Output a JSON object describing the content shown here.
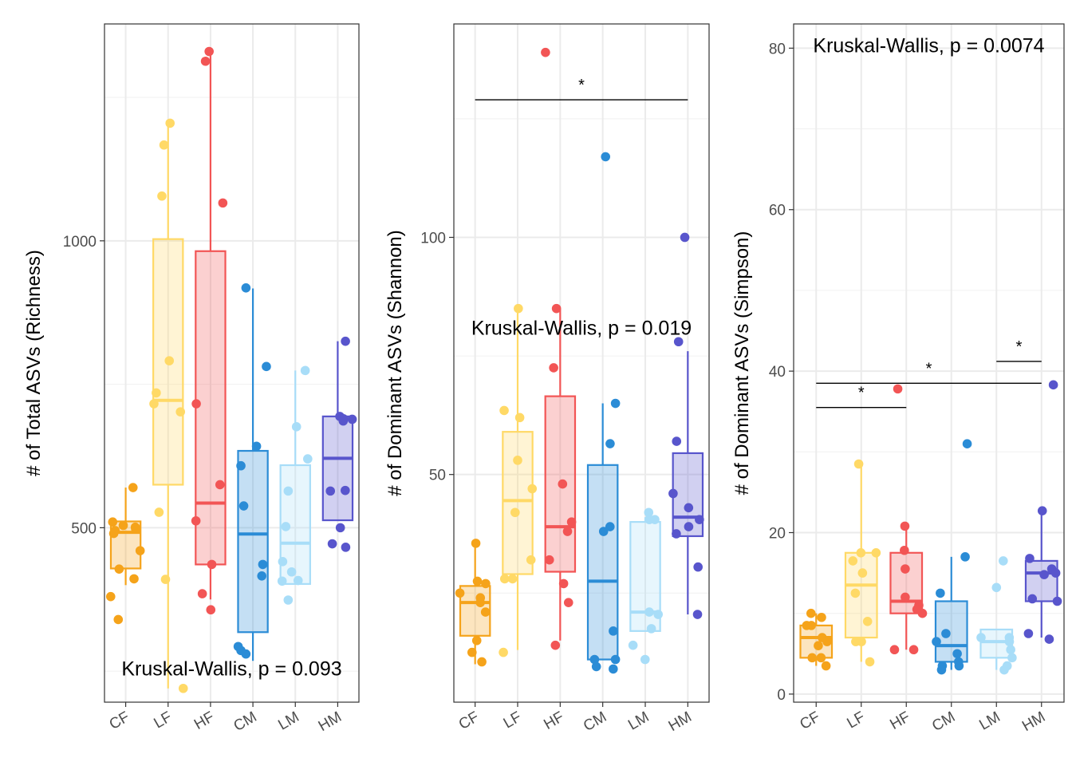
{
  "groups": [
    "CF",
    "LF",
    "HF",
    "CM",
    "LM",
    "HM"
  ],
  "colors": {
    "CF": "#F5A31A",
    "LF": "#FFD966",
    "HF": "#F25555",
    "CM": "#2B8CD6",
    "LM": "#A8DDF8",
    "HM": "#5855CC"
  },
  "chart_data": [
    {
      "type": "boxplot",
      "ylabel": "# of Total ASVs (Richness)",
      "yticks": [
        500,
        1000
      ],
      "ylim": [
        196,
        1378
      ],
      "annotation": "Kruskal-Wallis, p = 0.093",
      "annotation_pos": [
        350,
        255
      ],
      "boxes": {
        "CF": {
          "q1": 429,
          "median": 492,
          "q3": 511,
          "lower": 400,
          "upper": 570
        },
        "LF": {
          "q1": 575,
          "median": 722,
          "q3": 1003,
          "lower": 220,
          "upper": 1205
        },
        "HF": {
          "q1": 436,
          "median": 543,
          "q3": 982,
          "lower": 375,
          "upper": 1325
        },
        "CM": {
          "q1": 318,
          "median": 489,
          "q3": 634,
          "lower": 268,
          "upper": 917
        },
        "LM": {
          "q1": 402,
          "median": 473,
          "q3": 609,
          "lower": 402,
          "upper": 774
        },
        "HM": {
          "q1": 513,
          "median": 621,
          "q3": 694,
          "lower": 513,
          "upper": 825
        }
      },
      "points": {
        "CF": [
          570,
          510,
          504,
          498,
          495,
          501,
          490,
          460,
          428,
          411,
          380,
          340
        ],
        "LF": [
          1205,
          1167,
          1078,
          791,
          735,
          716,
          702,
          527,
          410,
          220
        ],
        "HF": [
          1330,
          1313,
          1066,
          716,
          575,
          512,
          436,
          385,
          357
        ],
        "CM": [
          918,
          781,
          642,
          608,
          538,
          436,
          416,
          293,
          286,
          280
        ],
        "LM": [
          774,
          676,
          620,
          564,
          502,
          441,
          423,
          407,
          408,
          374
        ],
        "HM": [
          825,
          694,
          690,
          689,
          686,
          564,
          565,
          500,
          472,
          466
        ]
      },
      "brackets": []
    },
    {
      "type": "boxplot",
      "ylabel": "# of Dominant ASVs (Shannon)",
      "yticks": [
        50,
        100
      ],
      "ylim": [
        2,
        145
      ],
      "annotation": "Kruskal-Wallis, p = 0.019",
      "annotation_pos": [
        350,
        81
      ],
      "boxes": {
        "CF": {
          "q1": 16,
          "median": 23,
          "q3": 26.5,
          "lower": 10,
          "upper": 35
        },
        "LF": {
          "q1": 29,
          "median": 44.5,
          "q3": 59,
          "lower": 13,
          "upper": 85
        },
        "HF": {
          "q1": 29.5,
          "median": 39,
          "q3": 66.5,
          "lower": 15,
          "upper": 85
        },
        "CM": {
          "q1": 11,
          "median": 27.5,
          "q3": 52,
          "lower": 11,
          "upper": 65
        },
        "LM": {
          "q1": 17,
          "median": 21,
          "q3": 40,
          "lower": 17,
          "upper": 41
        },
        "HM": {
          "q1": 37,
          "median": 41,
          "q3": 54.5,
          "lower": 20.5,
          "upper": 76
        }
      },
      "points": {
        "CF": [
          35.5,
          27.5,
          27,
          25,
          24,
          23,
          21,
          15,
          12.5,
          10.5
        ],
        "LF": [
          85,
          62,
          63.5,
          53,
          47,
          42,
          32,
          28,
          28,
          12.5
        ],
        "HF": [
          139,
          85,
          72.5,
          48,
          40,
          38,
          32,
          27,
          23,
          14
        ],
        "CM": [
          117,
          65,
          56.5,
          39,
          38,
          17,
          11,
          11,
          9.5,
          9
        ],
        "LM": [
          42,
          40.5,
          40.5,
          21,
          20.5,
          17.5,
          14,
          11
        ],
        "HM": [
          100,
          78,
          57,
          46,
          43,
          40.5,
          39,
          37.5,
          30.5,
          20.5
        ]
      },
      "brackets": [
        {
          "from": "CF",
          "to": "HM",
          "y": 129,
          "label": "*"
        }
      ]
    },
    {
      "type": "boxplot",
      "ylabel": "# of Dominant ASVs (Simpson)",
      "yticks": [
        0,
        20,
        40,
        60,
        80
      ],
      "ylim": [
        -1,
        83
      ],
      "annotation": "Kruskal-Wallis, p = 0.0074",
      "annotation_pos": [
        350,
        80.4
      ],
      "boxes": {
        "CF": {
          "q1": 4.5,
          "median": 7,
          "q3": 8.5,
          "lower": 3.5,
          "upper": 10
        },
        "LF": {
          "q1": 7,
          "median": 13.5,
          "q3": 17.5,
          "lower": 4,
          "upper": 28.5
        },
        "HF": {
          "q1": 10,
          "median": 11.5,
          "q3": 17.5,
          "lower": 5.5,
          "upper": 20.5
        },
        "CM": {
          "q1": 4,
          "median": 6,
          "q3": 11.5,
          "lower": 3,
          "upper": 17
        },
        "LM": {
          "q1": 4.5,
          "median": 6.5,
          "q3": 8,
          "lower": 3,
          "upper": 8
        },
        "HM": {
          "q1": 11.5,
          "median": 15,
          "q3": 16.5,
          "lower": 7,
          "upper": 22.5
        }
      },
      "points": {
        "CF": [
          10,
          9.5,
          8.5,
          8.5,
          7,
          6.5,
          6,
          4.5,
          4.5,
          3.5
        ],
        "LF": [
          28.5,
          17.5,
          17.5,
          16.5,
          15,
          12.5,
          9,
          6.5,
          6.5,
          4
        ],
        "HF": [
          37.8,
          20.8,
          17.8,
          15.5,
          12,
          11,
          10.5,
          10,
          5.5,
          5.5
        ],
        "CM": [
          31,
          17,
          12.5,
          7.5,
          6.5,
          5,
          4,
          3.5,
          3.5,
          3
        ],
        "LM": [
          16.5,
          13.2,
          7,
          7,
          6.5,
          5.5,
          4.5,
          3.5,
          3
        ],
        "HM": [
          38.3,
          22.7,
          16.8,
          15.5,
          15,
          14.8,
          11.8,
          11.5,
          7.5,
          6.8
        ]
      },
      "brackets": [
        {
          "from": "CF",
          "to": "HF",
          "y": 35.5,
          "label": "*"
        },
        {
          "from": "CF",
          "to": "HM",
          "y": 38.5,
          "label": "*"
        },
        {
          "from": "LM",
          "to": "HM",
          "y": 41.2,
          "label": "*"
        }
      ]
    }
  ]
}
